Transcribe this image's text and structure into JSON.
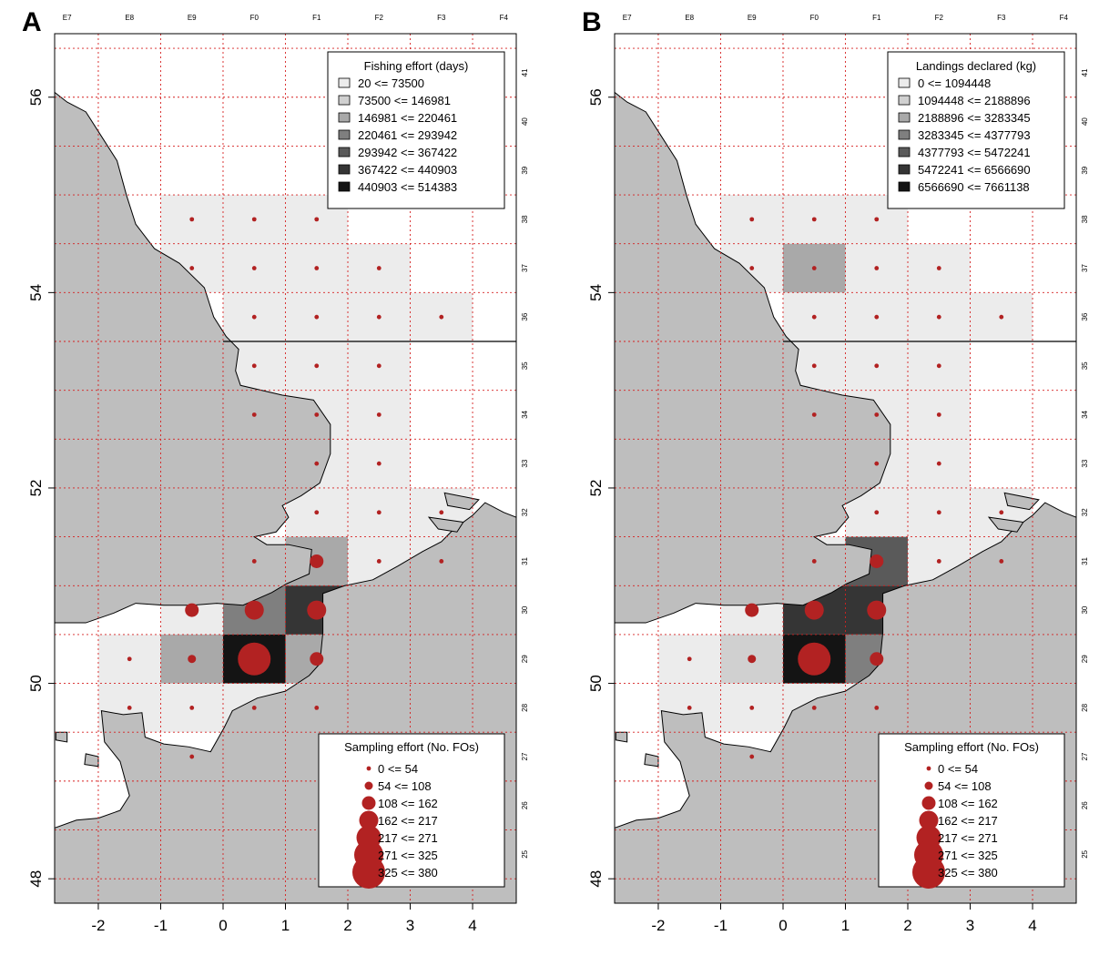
{
  "figure": {
    "panels": [
      {
        "id": "A",
        "label": "A",
        "legend_fill_title": "Fishing effort (days)",
        "legend_fill_items": [
          {
            "label": "20 <= 73500",
            "color": "#ececec"
          },
          {
            "label": "73500 <= 146981",
            "color": "#d0d0d0"
          },
          {
            "label": "146981 <= 220461",
            "color": "#a9a9a9"
          },
          {
            "label": "220461 <= 293942",
            "color": "#7f7f7f"
          },
          {
            "label": "293942 <= 367422",
            "color": "#5a5a5a"
          },
          {
            "label": "367422 <= 440903",
            "color": "#353535"
          },
          {
            "label": "440903 <= 514383",
            "color": "#141414"
          }
        ],
        "cells": [
          {
            "lon": -1,
            "lat": 54.5,
            "level": 1
          },
          {
            "lon": 0,
            "lat": 54.5,
            "level": 1
          },
          {
            "lon": 1,
            "lat": 54.5,
            "level": 1
          },
          {
            "lon": -1,
            "lat": 54.0,
            "level": 1
          },
          {
            "lon": 0,
            "lat": 54.0,
            "level": 1
          },
          {
            "lon": 1,
            "lat": 54.0,
            "level": 1
          },
          {
            "lon": 2,
            "lat": 54.0,
            "level": 1
          },
          {
            "lon": 0,
            "lat": 53.5,
            "level": 1
          },
          {
            "lon": 1,
            "lat": 53.5,
            "level": 1
          },
          {
            "lon": 2,
            "lat": 53.5,
            "level": 1
          },
          {
            "lon": 3,
            "lat": 53.5,
            "level": 1
          },
          {
            "lon": 0,
            "lat": 53.0,
            "level": 1
          },
          {
            "lon": 1,
            "lat": 53.0,
            "level": 1
          },
          {
            "lon": 2,
            "lat": 53.0,
            "level": 1
          },
          {
            "lon": 0,
            "lat": 52.5,
            "level": 1
          },
          {
            "lon": 1,
            "lat": 52.5,
            "level": 1
          },
          {
            "lon": 2,
            "lat": 52.5,
            "level": 1
          },
          {
            "lon": 1,
            "lat": 52.0,
            "level": 1
          },
          {
            "lon": 2,
            "lat": 52.0,
            "level": 1
          },
          {
            "lon": 1,
            "lat": 51.5,
            "level": 1
          },
          {
            "lon": 2,
            "lat": 51.5,
            "level": 1
          },
          {
            "lon": 3,
            "lat": 51.5,
            "level": 1
          },
          {
            "lon": 0,
            "lat": 51.0,
            "level": 1
          },
          {
            "lon": 1,
            "lat": 51.0,
            "level": 3
          },
          {
            "lon": 2,
            "lat": 51.0,
            "level": 1
          },
          {
            "lon": 3,
            "lat": 51.0,
            "level": 1
          },
          {
            "lon": -1,
            "lat": 50.5,
            "level": 1
          },
          {
            "lon": 0,
            "lat": 50.5,
            "level": 4
          },
          {
            "lon": 1,
            "lat": 50.5,
            "level": 6
          },
          {
            "lon": -2,
            "lat": 50.0,
            "level": 1
          },
          {
            "lon": -1,
            "lat": 50.0,
            "level": 3
          },
          {
            "lon": 0,
            "lat": 50.0,
            "level": 7
          },
          {
            "lon": 1,
            "lat": 50.0,
            "level": 3
          },
          {
            "lon": -2,
            "lat": 49.5,
            "level": 1
          },
          {
            "lon": -1,
            "lat": 49.5,
            "level": 1
          },
          {
            "lon": 0,
            "lat": 49.5,
            "level": 1
          },
          {
            "lon": 1,
            "lat": 49.5,
            "level": 1
          }
        ]
      },
      {
        "id": "B",
        "label": "B",
        "legend_fill_title": "Landings declared (kg)",
        "legend_fill_items": [
          {
            "label": "0 <= 1094448",
            "color": "#ececec"
          },
          {
            "label": "1094448 <= 2188896",
            "color": "#d0d0d0"
          },
          {
            "label": "2188896 <= 3283345",
            "color": "#a9a9a9"
          },
          {
            "label": "3283345 <= 4377793",
            "color": "#7f7f7f"
          },
          {
            "label": "4377793 <= 5472241",
            "color": "#5a5a5a"
          },
          {
            "label": "5472241 <= 6566690",
            "color": "#353535"
          },
          {
            "label": "6566690 <= 7661138",
            "color": "#141414"
          }
        ],
        "cells": [
          {
            "lon": -1,
            "lat": 54.5,
            "level": 1
          },
          {
            "lon": 0,
            "lat": 54.5,
            "level": 1
          },
          {
            "lon": 1,
            "lat": 54.5,
            "level": 1
          },
          {
            "lon": -1,
            "lat": 54.0,
            "level": 1
          },
          {
            "lon": 0,
            "lat": 54.0,
            "level": 3
          },
          {
            "lon": 1,
            "lat": 54.0,
            "level": 1
          },
          {
            "lon": 2,
            "lat": 54.0,
            "level": 1
          },
          {
            "lon": 0,
            "lat": 53.5,
            "level": 1
          },
          {
            "lon": 1,
            "lat": 53.5,
            "level": 1
          },
          {
            "lon": 2,
            "lat": 53.5,
            "level": 1
          },
          {
            "lon": 3,
            "lat": 53.5,
            "level": 1
          },
          {
            "lon": 0,
            "lat": 53.0,
            "level": 1
          },
          {
            "lon": 1,
            "lat": 53.0,
            "level": 1
          },
          {
            "lon": 2,
            "lat": 53.0,
            "level": 1
          },
          {
            "lon": 0,
            "lat": 52.5,
            "level": 1
          },
          {
            "lon": 1,
            "lat": 52.5,
            "level": 1
          },
          {
            "lon": 2,
            "lat": 52.5,
            "level": 1
          },
          {
            "lon": 1,
            "lat": 52.0,
            "level": 1
          },
          {
            "lon": 2,
            "lat": 52.0,
            "level": 1
          },
          {
            "lon": 1,
            "lat": 51.5,
            "level": 1
          },
          {
            "lon": 2,
            "lat": 51.5,
            "level": 1
          },
          {
            "lon": 3,
            "lat": 51.5,
            "level": 1
          },
          {
            "lon": 0,
            "lat": 51.0,
            "level": 1
          },
          {
            "lon": 1,
            "lat": 51.0,
            "level": 5
          },
          {
            "lon": 2,
            "lat": 51.0,
            "level": 1
          },
          {
            "lon": 3,
            "lat": 51.0,
            "level": 1
          },
          {
            "lon": -1,
            "lat": 50.5,
            "level": 1
          },
          {
            "lon": 0,
            "lat": 50.5,
            "level": 6
          },
          {
            "lon": 1,
            "lat": 50.5,
            "level": 6
          },
          {
            "lon": -2,
            "lat": 50.0,
            "level": 1
          },
          {
            "lon": -1,
            "lat": 50.0,
            "level": 2
          },
          {
            "lon": 0,
            "lat": 50.0,
            "level": 7
          },
          {
            "lon": 1,
            "lat": 50.0,
            "level": 4
          },
          {
            "lon": -2,
            "lat": 49.5,
            "level": 1
          },
          {
            "lon": -1,
            "lat": 49.5,
            "level": 1
          },
          {
            "lon": 0,
            "lat": 49.5,
            "level": 1
          },
          {
            "lon": 1,
            "lat": 49.5,
            "level": 1
          }
        ]
      }
    ],
    "points": [
      {
        "lon": -0.5,
        "lat": 54.75,
        "level": 1
      },
      {
        "lon": 0.5,
        "lat": 54.75,
        "level": 1
      },
      {
        "lon": 1.5,
        "lat": 54.75,
        "level": 1
      },
      {
        "lon": -0.5,
        "lat": 54.25,
        "level": 1
      },
      {
        "lon": 0.5,
        "lat": 54.25,
        "level": 1
      },
      {
        "lon": 1.5,
        "lat": 54.25,
        "level": 1
      },
      {
        "lon": 2.5,
        "lat": 54.25,
        "level": 1
      },
      {
        "lon": 0.5,
        "lat": 53.75,
        "level": 1
      },
      {
        "lon": 1.5,
        "lat": 53.75,
        "level": 1
      },
      {
        "lon": 2.5,
        "lat": 53.75,
        "level": 1
      },
      {
        "lon": 3.5,
        "lat": 53.75,
        "level": 1
      },
      {
        "lon": 0.5,
        "lat": 53.25,
        "level": 1
      },
      {
        "lon": 1.5,
        "lat": 53.25,
        "level": 1
      },
      {
        "lon": 2.5,
        "lat": 53.25,
        "level": 1
      },
      {
        "lon": 0.5,
        "lat": 52.75,
        "level": 1
      },
      {
        "lon": 1.5,
        "lat": 52.75,
        "level": 1
      },
      {
        "lon": 2.5,
        "lat": 52.75,
        "level": 1
      },
      {
        "lon": 1.5,
        "lat": 52.25,
        "level": 1
      },
      {
        "lon": 2.5,
        "lat": 52.25,
        "level": 1
      },
      {
        "lon": 1.5,
        "lat": 51.75,
        "level": 1
      },
      {
        "lon": 2.5,
        "lat": 51.75,
        "level": 1
      },
      {
        "lon": 3.5,
        "lat": 51.75,
        "level": 1
      },
      {
        "lon": 0.5,
        "lat": 51.25,
        "level": 1
      },
      {
        "lon": 1.5,
        "lat": 51.25,
        "level": 3
      },
      {
        "lon": 2.5,
        "lat": 51.25,
        "level": 1
      },
      {
        "lon": 3.5,
        "lat": 51.25,
        "level": 1
      },
      {
        "lon": -0.5,
        "lat": 50.75,
        "level": 3
      },
      {
        "lon": 0.5,
        "lat": 50.75,
        "level": 4
      },
      {
        "lon": 1.5,
        "lat": 50.75,
        "level": 4
      },
      {
        "lon": -1.5,
        "lat": 50.25,
        "level": 1
      },
      {
        "lon": -0.5,
        "lat": 50.25,
        "level": 2
      },
      {
        "lon": 0.5,
        "lat": 50.25,
        "level": 7
      },
      {
        "lon": 1.5,
        "lat": 50.25,
        "level": 3
      },
      {
        "lon": -1.5,
        "lat": 49.75,
        "level": 1
      },
      {
        "lon": -0.5,
        "lat": 49.75,
        "level": 1
      },
      {
        "lon": 0.5,
        "lat": 49.75,
        "level": 1
      },
      {
        "lon": 1.5,
        "lat": 49.75,
        "level": 1
      },
      {
        "lon": -0.5,
        "lat": 49.25,
        "level": 1
      }
    ],
    "legend_point_title": "Sampling effort (No. FOs)",
    "legend_point_items": [
      "0 <= 54",
      "54 <= 108",
      "108 <= 162",
      "162 <= 217",
      "217 <= 271",
      "271 <= 325",
      "325 <= 380"
    ],
    "point_color": "#b22222",
    "land_color": "#bebebe",
    "x_ticks": [
      "-2",
      "-1",
      "0",
      "1",
      "2",
      "3",
      "4"
    ],
    "y_ticks": [
      "48",
      "50",
      "52",
      "54",
      "56"
    ],
    "top_labels": [
      "E7",
      "E8",
      "E9",
      "F0",
      "F1",
      "F2",
      "F3",
      "F4"
    ],
    "side_labels": [
      "41",
      "40",
      "39",
      "38",
      "37",
      "36",
      "35",
      "34",
      "33",
      "32",
      "31",
      "30",
      "29",
      "28",
      "27",
      "26",
      "25"
    ]
  }
}
